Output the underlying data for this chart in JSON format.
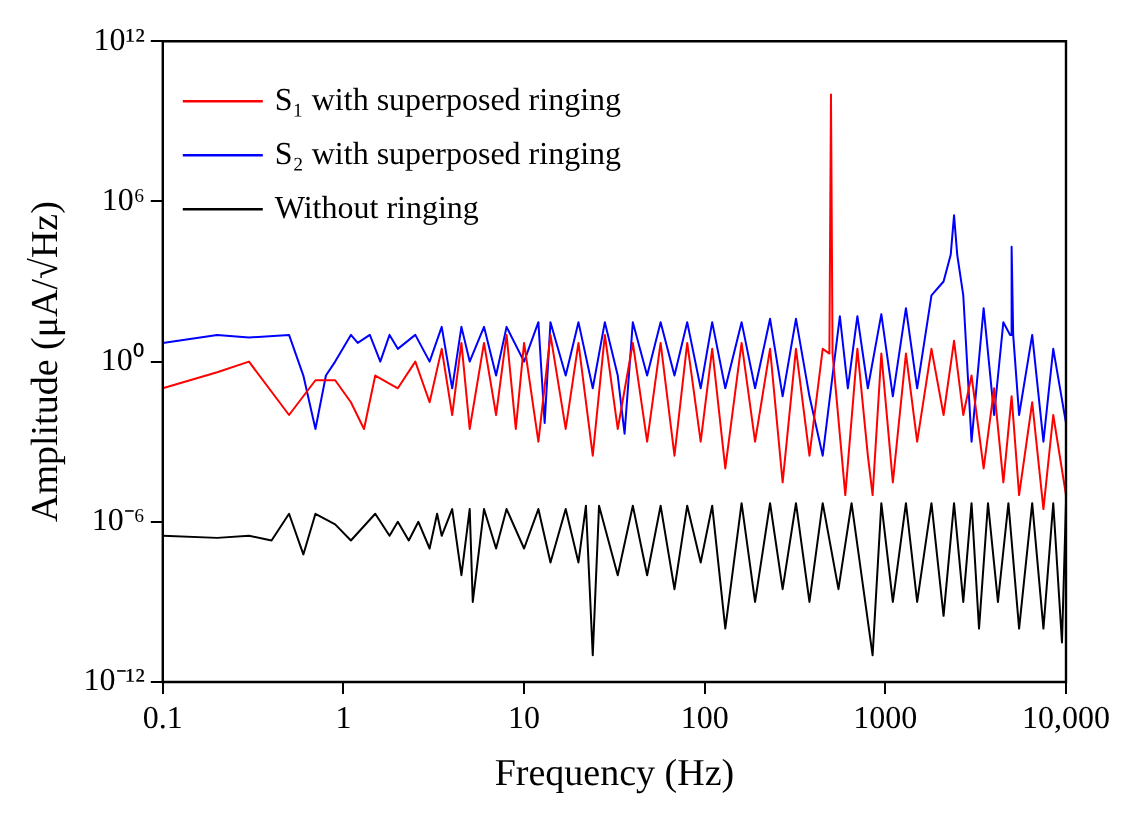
{
  "chart_data": {
    "type": "line",
    "xlabel": "Frequency (Hz)",
    "ylabel": "Amplitude (μA/√Hz)",
    "log": "xy",
    "grid": false,
    "legend": "top left",
    "marker": "none",
    "line_style": "solid",
    "xlim": [
      0.1,
      10000
    ],
    "xticks": [
      0.1,
      1,
      10,
      100,
      1000,
      {
        "value": 10000,
        "label": "10,000"
      }
    ],
    "ylim": [
      1e-12,
      1000000000000.0
    ],
    "yticks": [
      {
        "value": 1e-12,
        "label": "10⁻¹²"
      },
      {
        "value": 1e-06,
        "label": "10⁻⁶"
      },
      {
        "value": 1,
        "label": "10⁰"
      },
      {
        "value": 1000000.0,
        "label": "10⁶"
      },
      {
        "value": 1000000000000.0,
        "label": "10¹²"
      }
    ],
    "series": [
      {
        "name": "S₁ with superposed ringing",
        "color": "#ff0000",
        "x": [
          0.1,
          0.2,
          0.3,
          0.5,
          0.7,
          0.9,
          1.1,
          1.3,
          1.5,
          2,
          2.5,
          3,
          3.5,
          4,
          4.5,
          5,
          6,
          7,
          8,
          9,
          10,
          12,
          14,
          17,
          20,
          24,
          28,
          33,
          40,
          48,
          57,
          68,
          80,
          95,
          110,
          130,
          160,
          190,
          230,
          270,
          320,
          380,
          450,
          490,
          500,
          510,
          600,
          700,
          800,
          850,
          950,
          1100,
          1300,
          1500,
          1800,
          2100,
          2400,
          2700,
          3000,
          3500,
          4000,
          4500,
          5000,
          5500,
          6500,
          7500,
          8500,
          10000
        ],
        "values": [
          0.1,
          0.4,
          1,
          0.01,
          0.2,
          0.2,
          0.03,
          0.003,
          0.3,
          0.1,
          1,
          0.03,
          3,
          0.01,
          5,
          0.003,
          5,
          0.01,
          10,
          0.003,
          5,
          0.001,
          10,
          0.003,
          5,
          0.0003,
          10,
          0.003,
          5,
          0.001,
          5,
          0.0003,
          5,
          0.001,
          3,
          0.0001,
          5,
          0.001,
          3,
          3e-05,
          3,
          0.0003,
          3,
          2,
          10000000000.0,
          2,
          1e-05,
          3,
          0.0003,
          1e-05,
          2,
          3e-05,
          2,
          0.001,
          3,
          0.01,
          6,
          0.01,
          0.3,
          0.0001,
          0.1,
          3e-05,
          0.05,
          1e-05,
          0.03,
          3e-06,
          0.01,
          1e-05
        ]
      },
      {
        "name": "S₂ with superposed ringing",
        "color": "#0000ff",
        "x": [
          0.1,
          0.2,
          0.3,
          0.5,
          0.6,
          0.7,
          0.8,
          0.9,
          1.1,
          1.2,
          1.4,
          1.6,
          1.8,
          2,
          2.5,
          3,
          3.5,
          4,
          4.5,
          5,
          6,
          7,
          8,
          10,
          12,
          13,
          14,
          17,
          20,
          24,
          28,
          33,
          36,
          40,
          48,
          57,
          68,
          80,
          95,
          110,
          130,
          160,
          190,
          230,
          270,
          320,
          380,
          450,
          560,
          620,
          700,
          800,
          950,
          1100,
          1300,
          1500,
          1800,
          2100,
          2300,
          2400,
          2500,
          2700,
          3000,
          3500,
          4000,
          4500,
          4900,
          5000,
          5100,
          5500,
          6500,
          7500,
          8500,
          10000
        ],
        "values": [
          5,
          10,
          8,
          10,
          0.3,
          0.003,
          0.3,
          1,
          10,
          5,
          10,
          1,
          10,
          3,
          10,
          1,
          20,
          0.1,
          20,
          1,
          20,
          0.3,
          20,
          1,
          30,
          0.005,
          30,
          0.3,
          30,
          0.1,
          30,
          0.3,
          0.002,
          30,
          0.3,
          30,
          0.3,
          30,
          0.1,
          30,
          0.1,
          30,
          0.1,
          40,
          0.05,
          40,
          0.05,
          0.0003,
          50,
          0.1,
          50,
          0.1,
          60,
          0.05,
          100,
          0.1,
          300,
          1000,
          10000,
          300000,
          10000,
          300,
          0.001,
          100,
          0.01,
          30,
          10,
          20000,
          10,
          0.01,
          10,
          0.001,
          3,
          0.005
        ]
      },
      {
        "name": "Without ringing",
        "color": "#000000",
        "x": [
          0.1,
          0.2,
          0.3,
          0.4,
          0.5,
          0.6,
          0.7,
          0.9,
          1.1,
          1.5,
          1.8,
          2,
          2.3,
          2.6,
          3,
          3.3,
          3.5,
          4,
          4.5,
          5,
          5.2,
          6,
          7,
          8,
          10,
          12,
          14,
          17,
          20,
          22,
          24,
          26,
          33,
          40,
          48,
          57,
          68,
          80,
          95,
          110,
          130,
          160,
          190,
          230,
          270,
          320,
          380,
          450,
          550,
          650,
          850,
          950,
          1100,
          1300,
          1500,
          1800,
          2100,
          2400,
          2700,
          3000,
          3300,
          3700,
          4200,
          4800,
          5500,
          6500,
          7500,
          8500,
          9500,
          10000
        ],
        "values": [
          3e-07,
          2.5e-07,
          3e-07,
          2e-07,
          2e-06,
          6e-08,
          2e-06,
          8e-07,
          2e-07,
          2e-06,
          3e-07,
          1e-06,
          2e-07,
          1e-06,
          1e-07,
          2e-06,
          3e-07,
          3e-06,
          1e-08,
          3e-06,
          1e-09,
          3e-06,
          1e-07,
          3e-06,
          1e-07,
          3e-06,
          3e-08,
          3e-06,
          3e-08,
          4e-06,
          1e-11,
          4e-06,
          1e-08,
          4e-06,
          1e-08,
          4e-06,
          3e-09,
          4e-06,
          3e-08,
          4e-06,
          1e-10,
          5e-06,
          1e-09,
          5e-06,
          3e-09,
          5e-06,
          1e-09,
          5e-06,
          3e-09,
          5e-06,
          1e-11,
          5e-06,
          1e-09,
          5e-06,
          1e-09,
          5e-06,
          3e-10,
          5e-06,
          1e-09,
          5e-06,
          1e-10,
          5e-06,
          1e-09,
          5e-06,
          1e-10,
          5e-06,
          1e-10,
          5e-06,
          3e-11,
          5e-06
        ]
      }
    ]
  }
}
